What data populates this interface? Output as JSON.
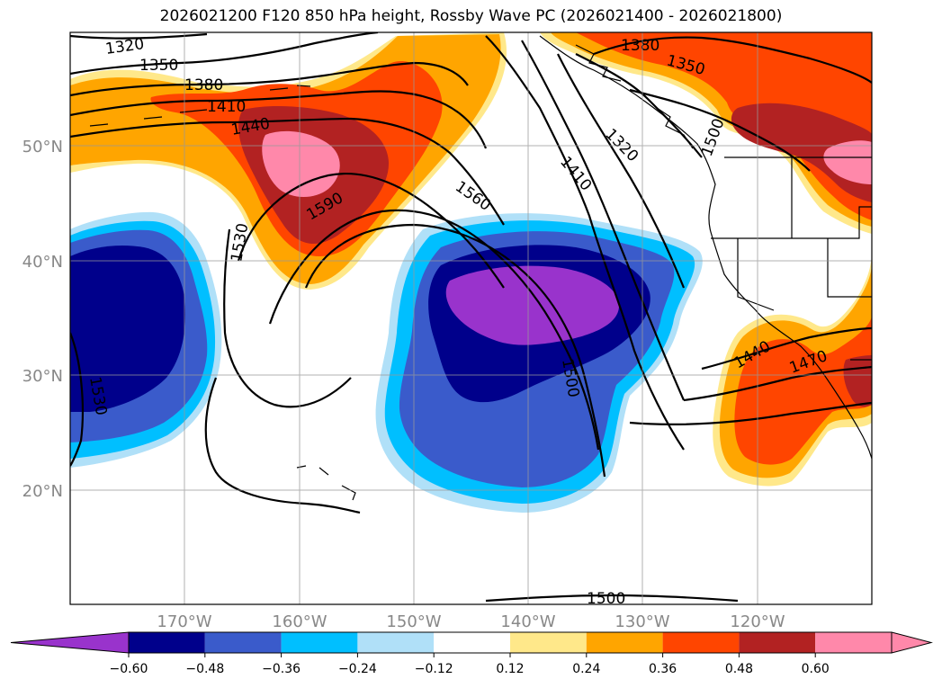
{
  "title": "2026021200 F120 850 hPa height, Rossby Wave PC (2026021400 - 2026021800)",
  "lat_labels": [
    "50°N",
    "40°N",
    "30°N",
    "20°N"
  ],
  "lon_labels": [
    "170°W",
    "160°W",
    "150°W",
    "140°W",
    "130°W",
    "120°W"
  ],
  "contour_labels": [
    "1320",
    "1350",
    "1380",
    "1410",
    "1440",
    "1590",
    "1530",
    "1560",
    "1410",
    "1320",
    "1380",
    "1350",
    "1500",
    "1440",
    "1470",
    "1530",
    "1500",
    "1500"
  ],
  "colorbar": {
    "ticks": [
      "-0.60",
      "-0.48",
      "-0.36",
      "-0.24",
      "-0.12",
      "0.12",
      "0.24",
      "0.36",
      "0.48",
      "0.60"
    ],
    "colors": [
      "#9933cc",
      "#00008b",
      "#3a5bcb",
      "#00bfff",
      "#b0e0f8",
      "#ffffff",
      "#ffe88a",
      "#ffa500",
      "#ff4500",
      "#b22222",
      "#ff88aa",
      "#ff88aa"
    ]
  },
  "colors": {
    "purple": "#9933cc",
    "navy": "#00008b",
    "blue": "#3a5bcb",
    "cyan": "#00bfff",
    "lightblue": "#b0e0f8",
    "yellow": "#ffe88a",
    "orange": "#ffa500",
    "redorange": "#ff4500",
    "darkred": "#b22222",
    "pink": "#ff88aa"
  }
}
